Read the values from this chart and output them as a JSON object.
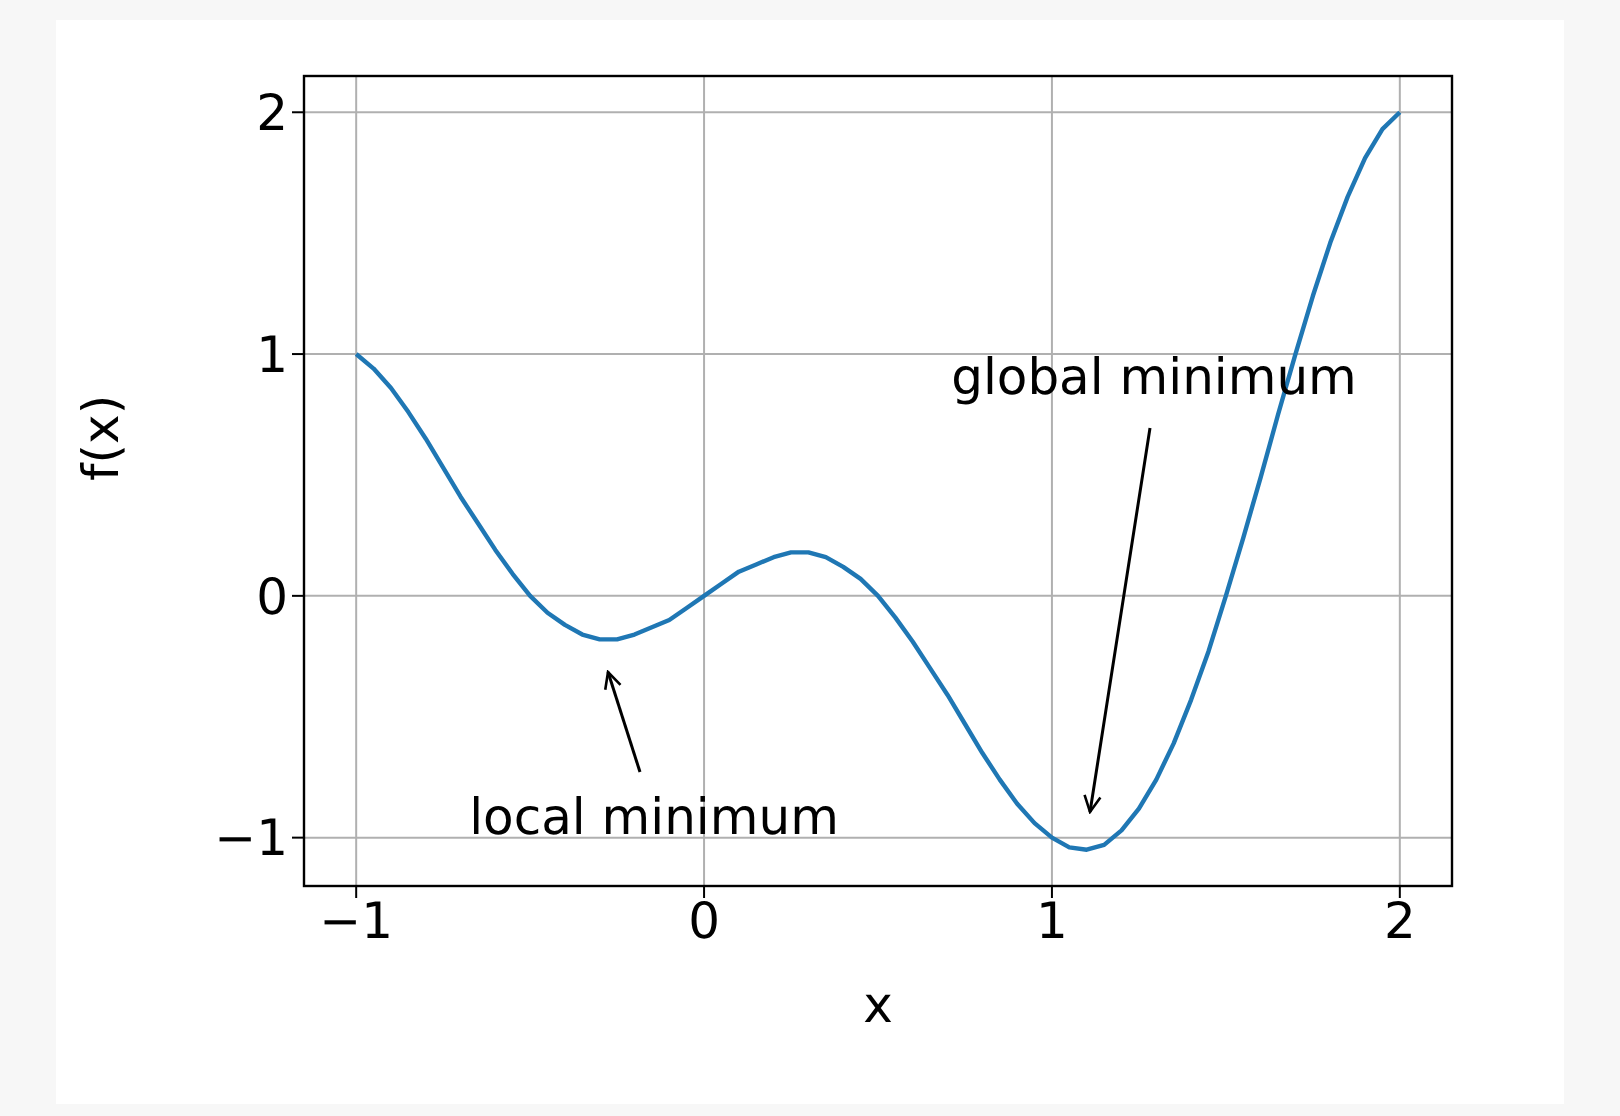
{
  "chart_data": {
    "type": "line",
    "xlabel": "x",
    "ylabel": "f(x)",
    "x": [
      -1,
      -0.95,
      -0.9,
      -0.85,
      -0.8,
      -0.75,
      -0.7,
      -0.65,
      -0.6,
      -0.55,
      -0.5,
      -0.45,
      -0.4,
      -0.35,
      -0.3,
      -0.25,
      -0.2,
      -0.15,
      -0.1,
      -0.05,
      0,
      0.05,
      0.1,
      0.15,
      0.2,
      0.25,
      0.3,
      0.35,
      0.4,
      0.45,
      0.5,
      0.55,
      0.6,
      0.65,
      0.7,
      0.75,
      0.8,
      0.85,
      0.9,
      0.95,
      1,
      1.05,
      1.1,
      1.15,
      1.2,
      1.25,
      1.3,
      1.35,
      1.4,
      1.45,
      1.5,
      1.55,
      1.6,
      1.65,
      1.7,
      1.75,
      1.8,
      1.85,
      1.9,
      1.95,
      2
    ],
    "series": [
      {
        "color": "#1f77b4",
        "values": [
          1,
          0.94,
          0.86,
          0.76,
          0.65,
          0.53,
          0.41,
          0.3,
          0.19,
          0.09,
          0,
          -0.07,
          -0.12,
          -0.16,
          -0.18,
          -0.18,
          -0.16,
          -0.13,
          -0.1,
          -0.05,
          0,
          0.05,
          0.1,
          0.13,
          0.16,
          0.18,
          0.18,
          0.16,
          0.12,
          0.07,
          0,
          -0.09,
          -0.19,
          -0.3,
          -0.41,
          -0.53,
          -0.65,
          -0.76,
          -0.86,
          -0.94,
          -1,
          -1.04,
          -1.05,
          -1.03,
          -0.97,
          -0.88,
          -0.76,
          -0.61,
          -0.43,
          -0.23,
          0,
          0.24,
          0.49,
          0.75,
          1,
          1.24,
          1.46,
          1.65,
          1.81,
          1.93,
          2
        ]
      }
    ],
    "xlim": [
      -1.15,
      2.15
    ],
    "xticks": [
      -1,
      0,
      1,
      2
    ],
    "ylim": [
      -1.2,
      2.15
    ],
    "yticks": [
      -1,
      0,
      1,
      2
    ],
    "grid": true,
    "marker": "none",
    "line_style": "solid",
    "annotations": [
      "local minimum",
      "global minimum"
    ]
  }
}
